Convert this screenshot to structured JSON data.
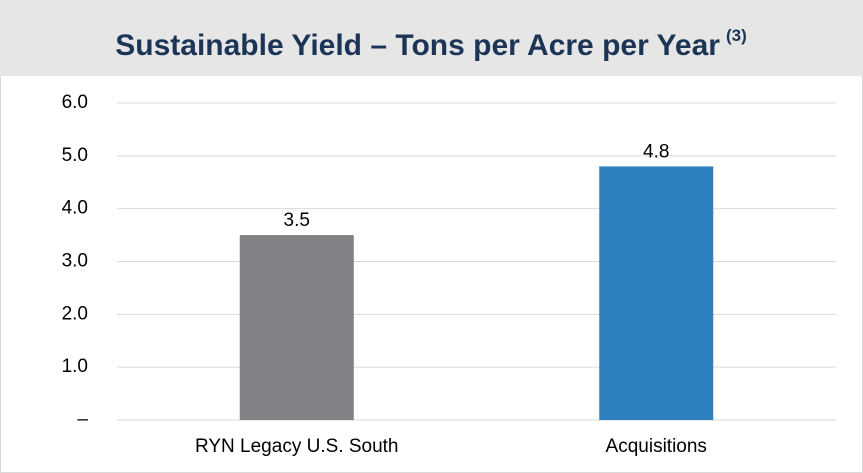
{
  "chart_data": {
    "type": "bar",
    "title": "Sustainable Yield – Tons per Acre per Year",
    "title_superscript": "(3)",
    "categories": [
      "RYN Legacy U.S. South",
      "Acquisitions"
    ],
    "values": [
      3.5,
      4.8
    ],
    "colors": [
      "#808184",
      "#2e80bf"
    ],
    "ylim": [
      0,
      6
    ],
    "yticks": [
      {
        "value": 0,
        "label": "–"
      },
      {
        "value": 1,
        "label": "1.0"
      },
      {
        "value": 2,
        "label": "2.0"
      },
      {
        "value": 3,
        "label": "3.0"
      },
      {
        "value": 4,
        "label": "4.0"
      },
      {
        "value": 5,
        "label": "5.0"
      },
      {
        "value": 6,
        "label": "6.0"
      }
    ],
    "grid": true
  }
}
